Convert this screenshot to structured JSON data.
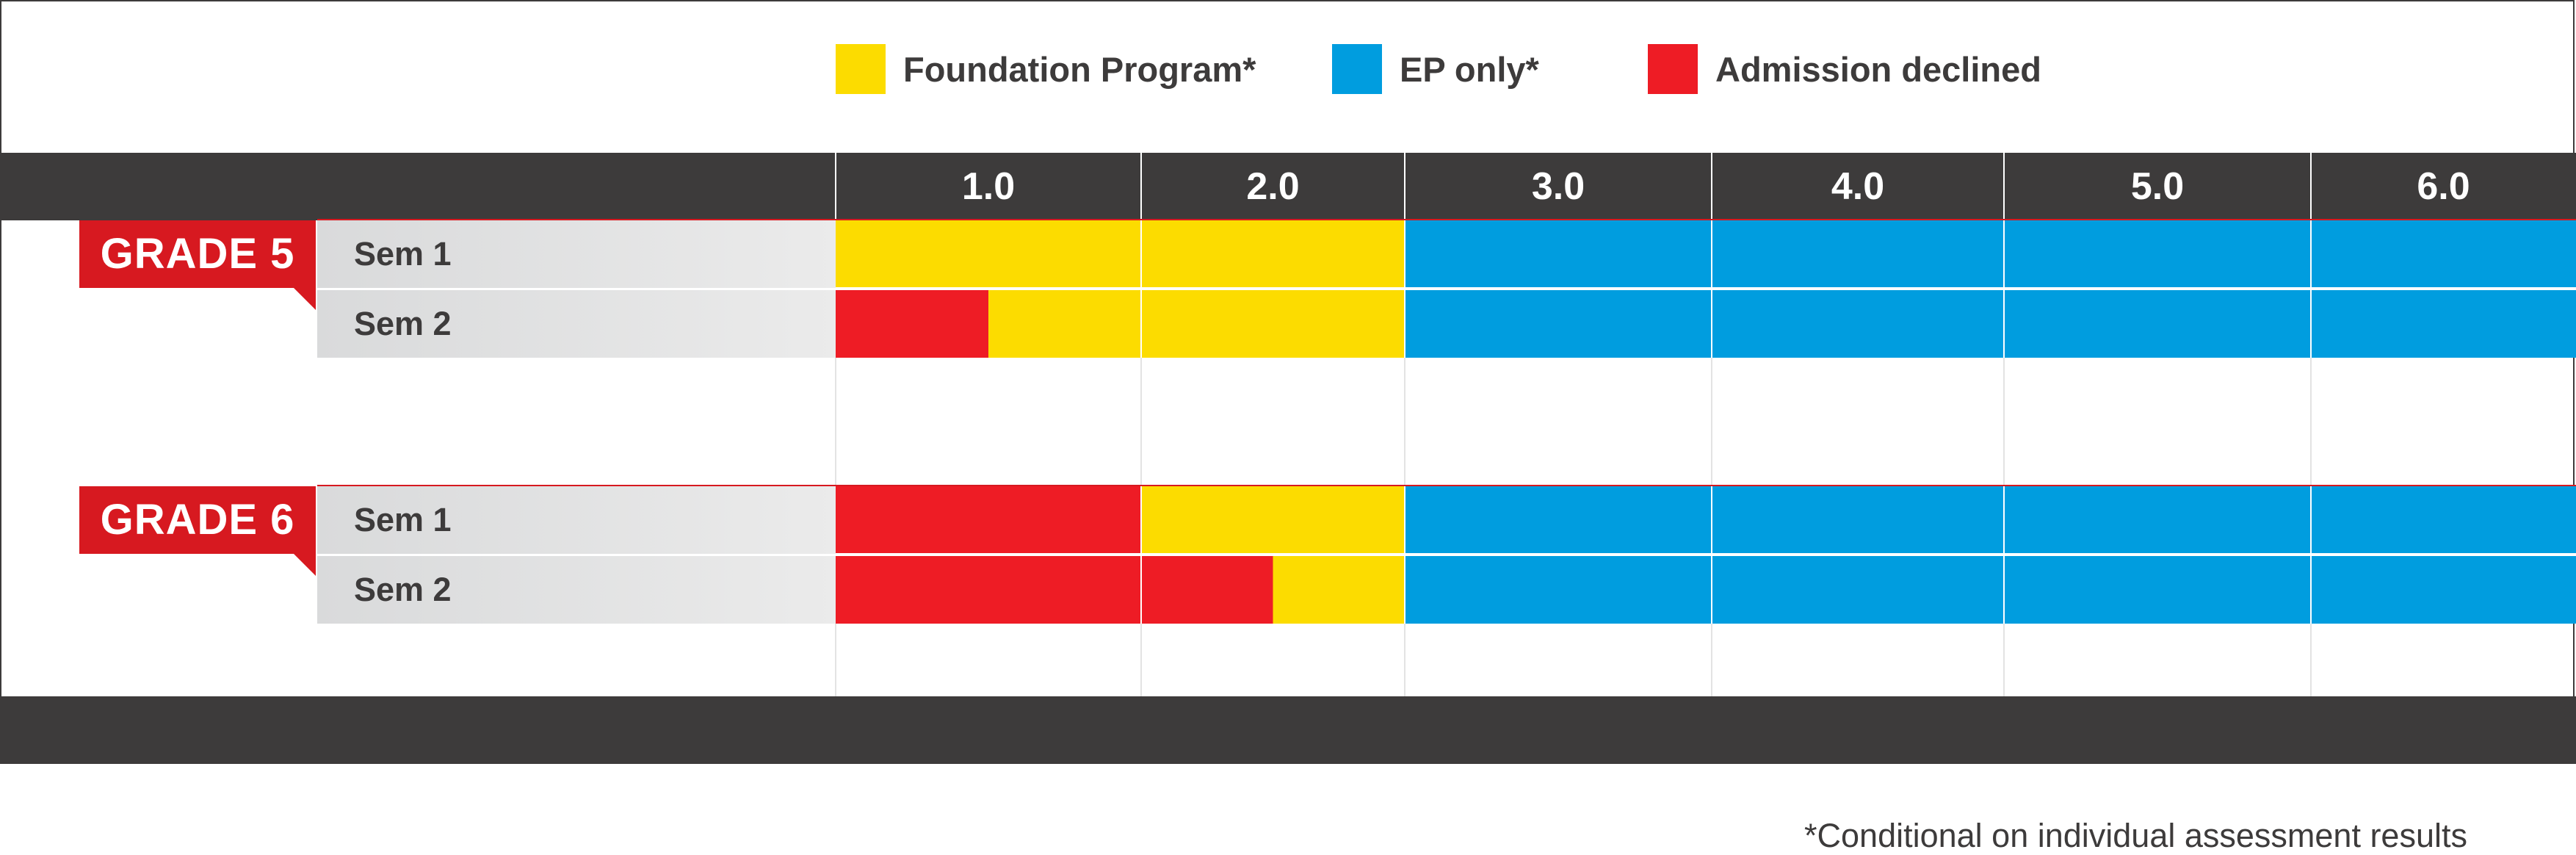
{
  "colors": {
    "foundation": "#fcdc00",
    "ep_only": "#009ddf",
    "declined": "#ee1c25",
    "dark_band": "#3d3b3b",
    "grade_tab": "#d71920",
    "grid": "#e3e3e3"
  },
  "legend": [
    {
      "key": "foundation",
      "label": "Foundation Program*"
    },
    {
      "key": "ep_only",
      "label": "EP only*"
    },
    {
      "key": "declined",
      "label": "Admission declined"
    }
  ],
  "footnote": "*Conditional on individual assessment results",
  "chart_data": {
    "type": "bar",
    "orientation": "horizontal-stacked",
    "x_ticks": [
      "1.0",
      "2.0",
      "3.0",
      "4.0",
      "5.0",
      "6.0"
    ],
    "x_range": [
      0.5,
      6.5
    ],
    "groups": [
      {
        "label": "GRADE 5",
        "rows": [
          {
            "label": "Sem 1",
            "segments": [
              {
                "category": "foundation",
                "from": 0.5,
                "to": 2.5
              },
              {
                "category": "ep_only",
                "from": 2.5,
                "to": 6.5
              }
            ]
          },
          {
            "label": "Sem 2",
            "segments": [
              {
                "category": "declined",
                "from": 0.5,
                "to": 1.0
              },
              {
                "category": "foundation",
                "from": 1.0,
                "to": 2.5
              },
              {
                "category": "ep_only",
                "from": 2.5,
                "to": 6.5
              }
            ]
          }
        ]
      },
      {
        "label": "GRADE 6",
        "rows": [
          {
            "label": "Sem 1",
            "segments": [
              {
                "category": "declined",
                "from": 0.5,
                "to": 1.5
              },
              {
                "category": "foundation",
                "from": 1.5,
                "to": 2.5
              },
              {
                "category": "ep_only",
                "from": 2.5,
                "to": 6.5
              }
            ]
          },
          {
            "label": "Sem 2",
            "segments": [
              {
                "category": "declined",
                "from": 0.5,
                "to": 2.0
              },
              {
                "category": "foundation",
                "from": 2.0,
                "to": 2.5
              },
              {
                "category": "ep_only",
                "from": 2.5,
                "to": 6.5
              }
            ]
          }
        ]
      }
    ]
  }
}
